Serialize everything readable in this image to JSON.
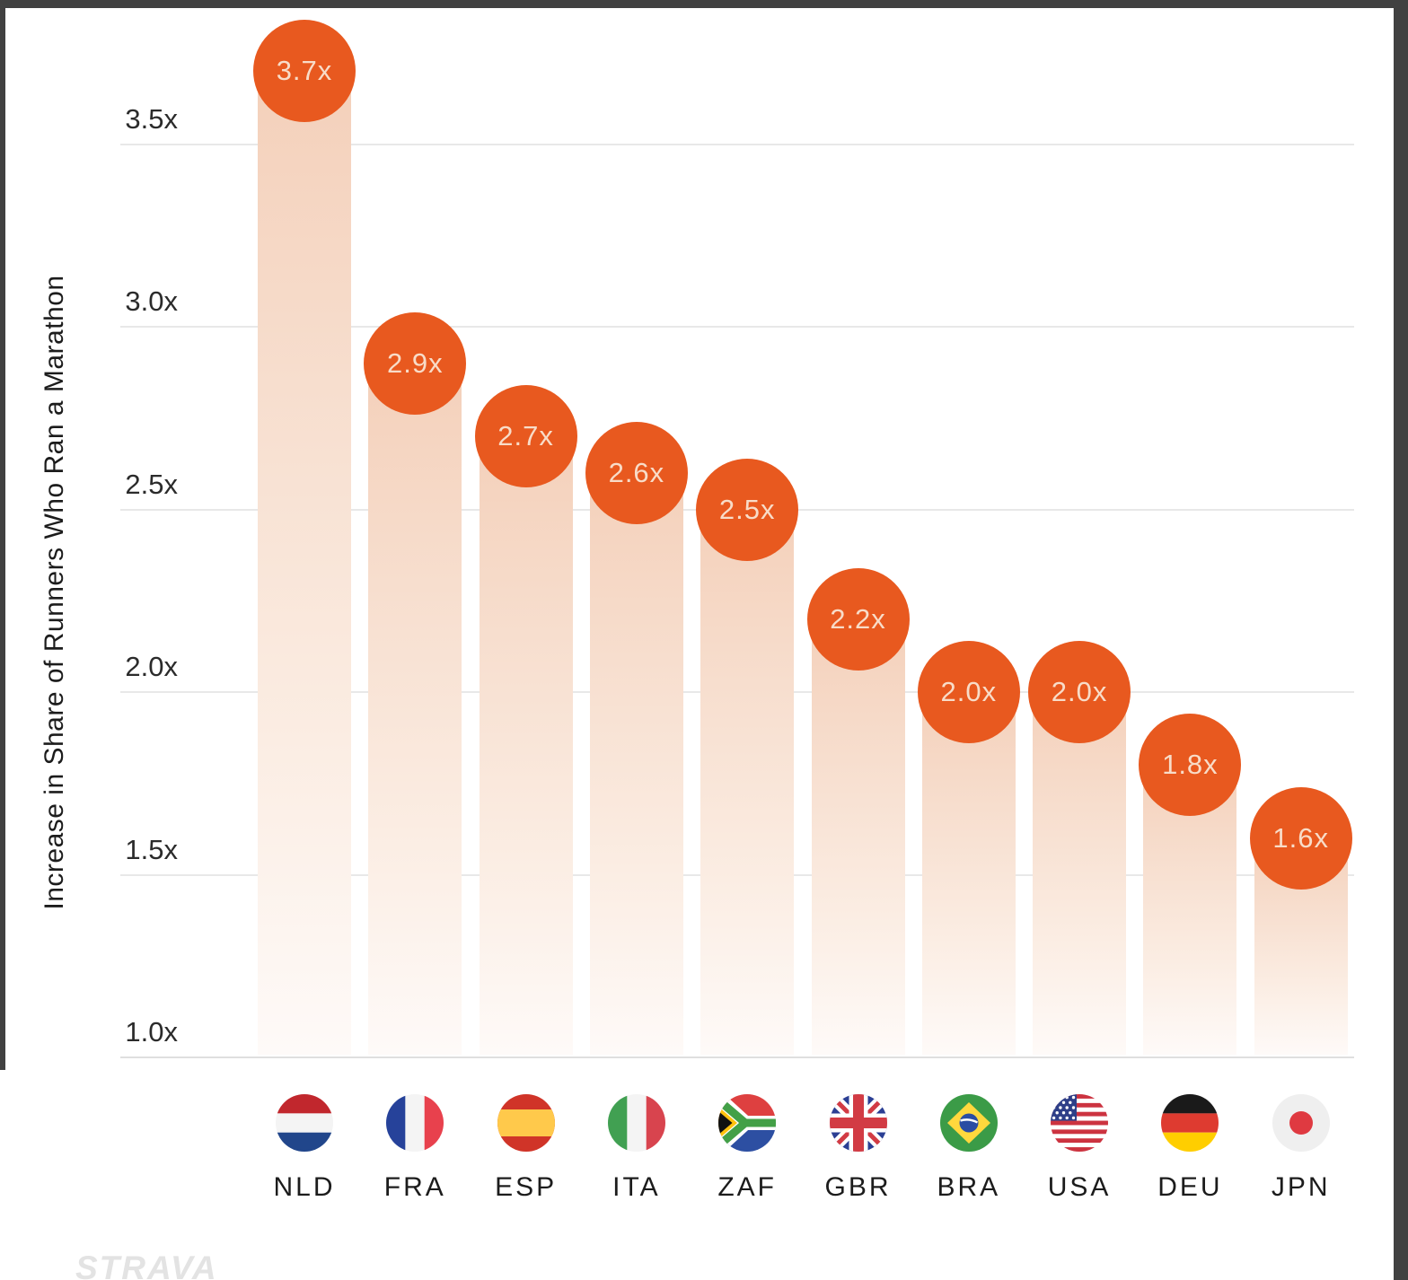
{
  "chart_data": {
    "type": "bar",
    "title": "",
    "ylabel": "Increase in Share of Runners Who Ran a Marathon",
    "xlabel": "",
    "categories": [
      "NLD",
      "FRA",
      "ESP",
      "ITA",
      "ZAF",
      "GBR",
      "BRA",
      "USA",
      "DEU",
      "JPN"
    ],
    "values": [
      3.7,
      2.9,
      2.7,
      2.6,
      2.5,
      2.2,
      2.0,
      2.0,
      1.8,
      1.6
    ],
    "value_labels": [
      "3.7x",
      "2.9x",
      "2.7x",
      "2.6x",
      "2.5x",
      "2.2x",
      "2.0x",
      "2.0x",
      "1.8x",
      "1.6x"
    ],
    "y_ticks": [
      {
        "label": "3.5x",
        "value": 3.5
      },
      {
        "label": "3.0x",
        "value": 3.0
      },
      {
        "label": "2.5x",
        "value": 2.5
      },
      {
        "label": "2.0x",
        "value": 2.0
      },
      {
        "label": "1.5x",
        "value": 1.5
      },
      {
        "label": "1.0x",
        "value": 1.0
      }
    ],
    "ylim": [
      1.0,
      3.85
    ],
    "grid": true,
    "legend_position": "none",
    "flag_icons": [
      "netherlands-flag",
      "france-flag",
      "spain-flag",
      "italy-flag",
      "south-africa-flag",
      "united-kingdom-flag",
      "brazil-flag",
      "usa-flag",
      "germany-flag",
      "japan-flag"
    ],
    "colors": {
      "bubble": "#E8591F",
      "bubble_text": "#F8DCC8",
      "bar_top": "#F4D0BA",
      "gridline": "#E8E8E8",
      "axis_text": "#2B2B2B"
    }
  },
  "branding": {
    "logo_text": "STRAVA",
    "logo_color": "#E3E3E3"
  },
  "frame": {
    "color": "#414141"
  }
}
